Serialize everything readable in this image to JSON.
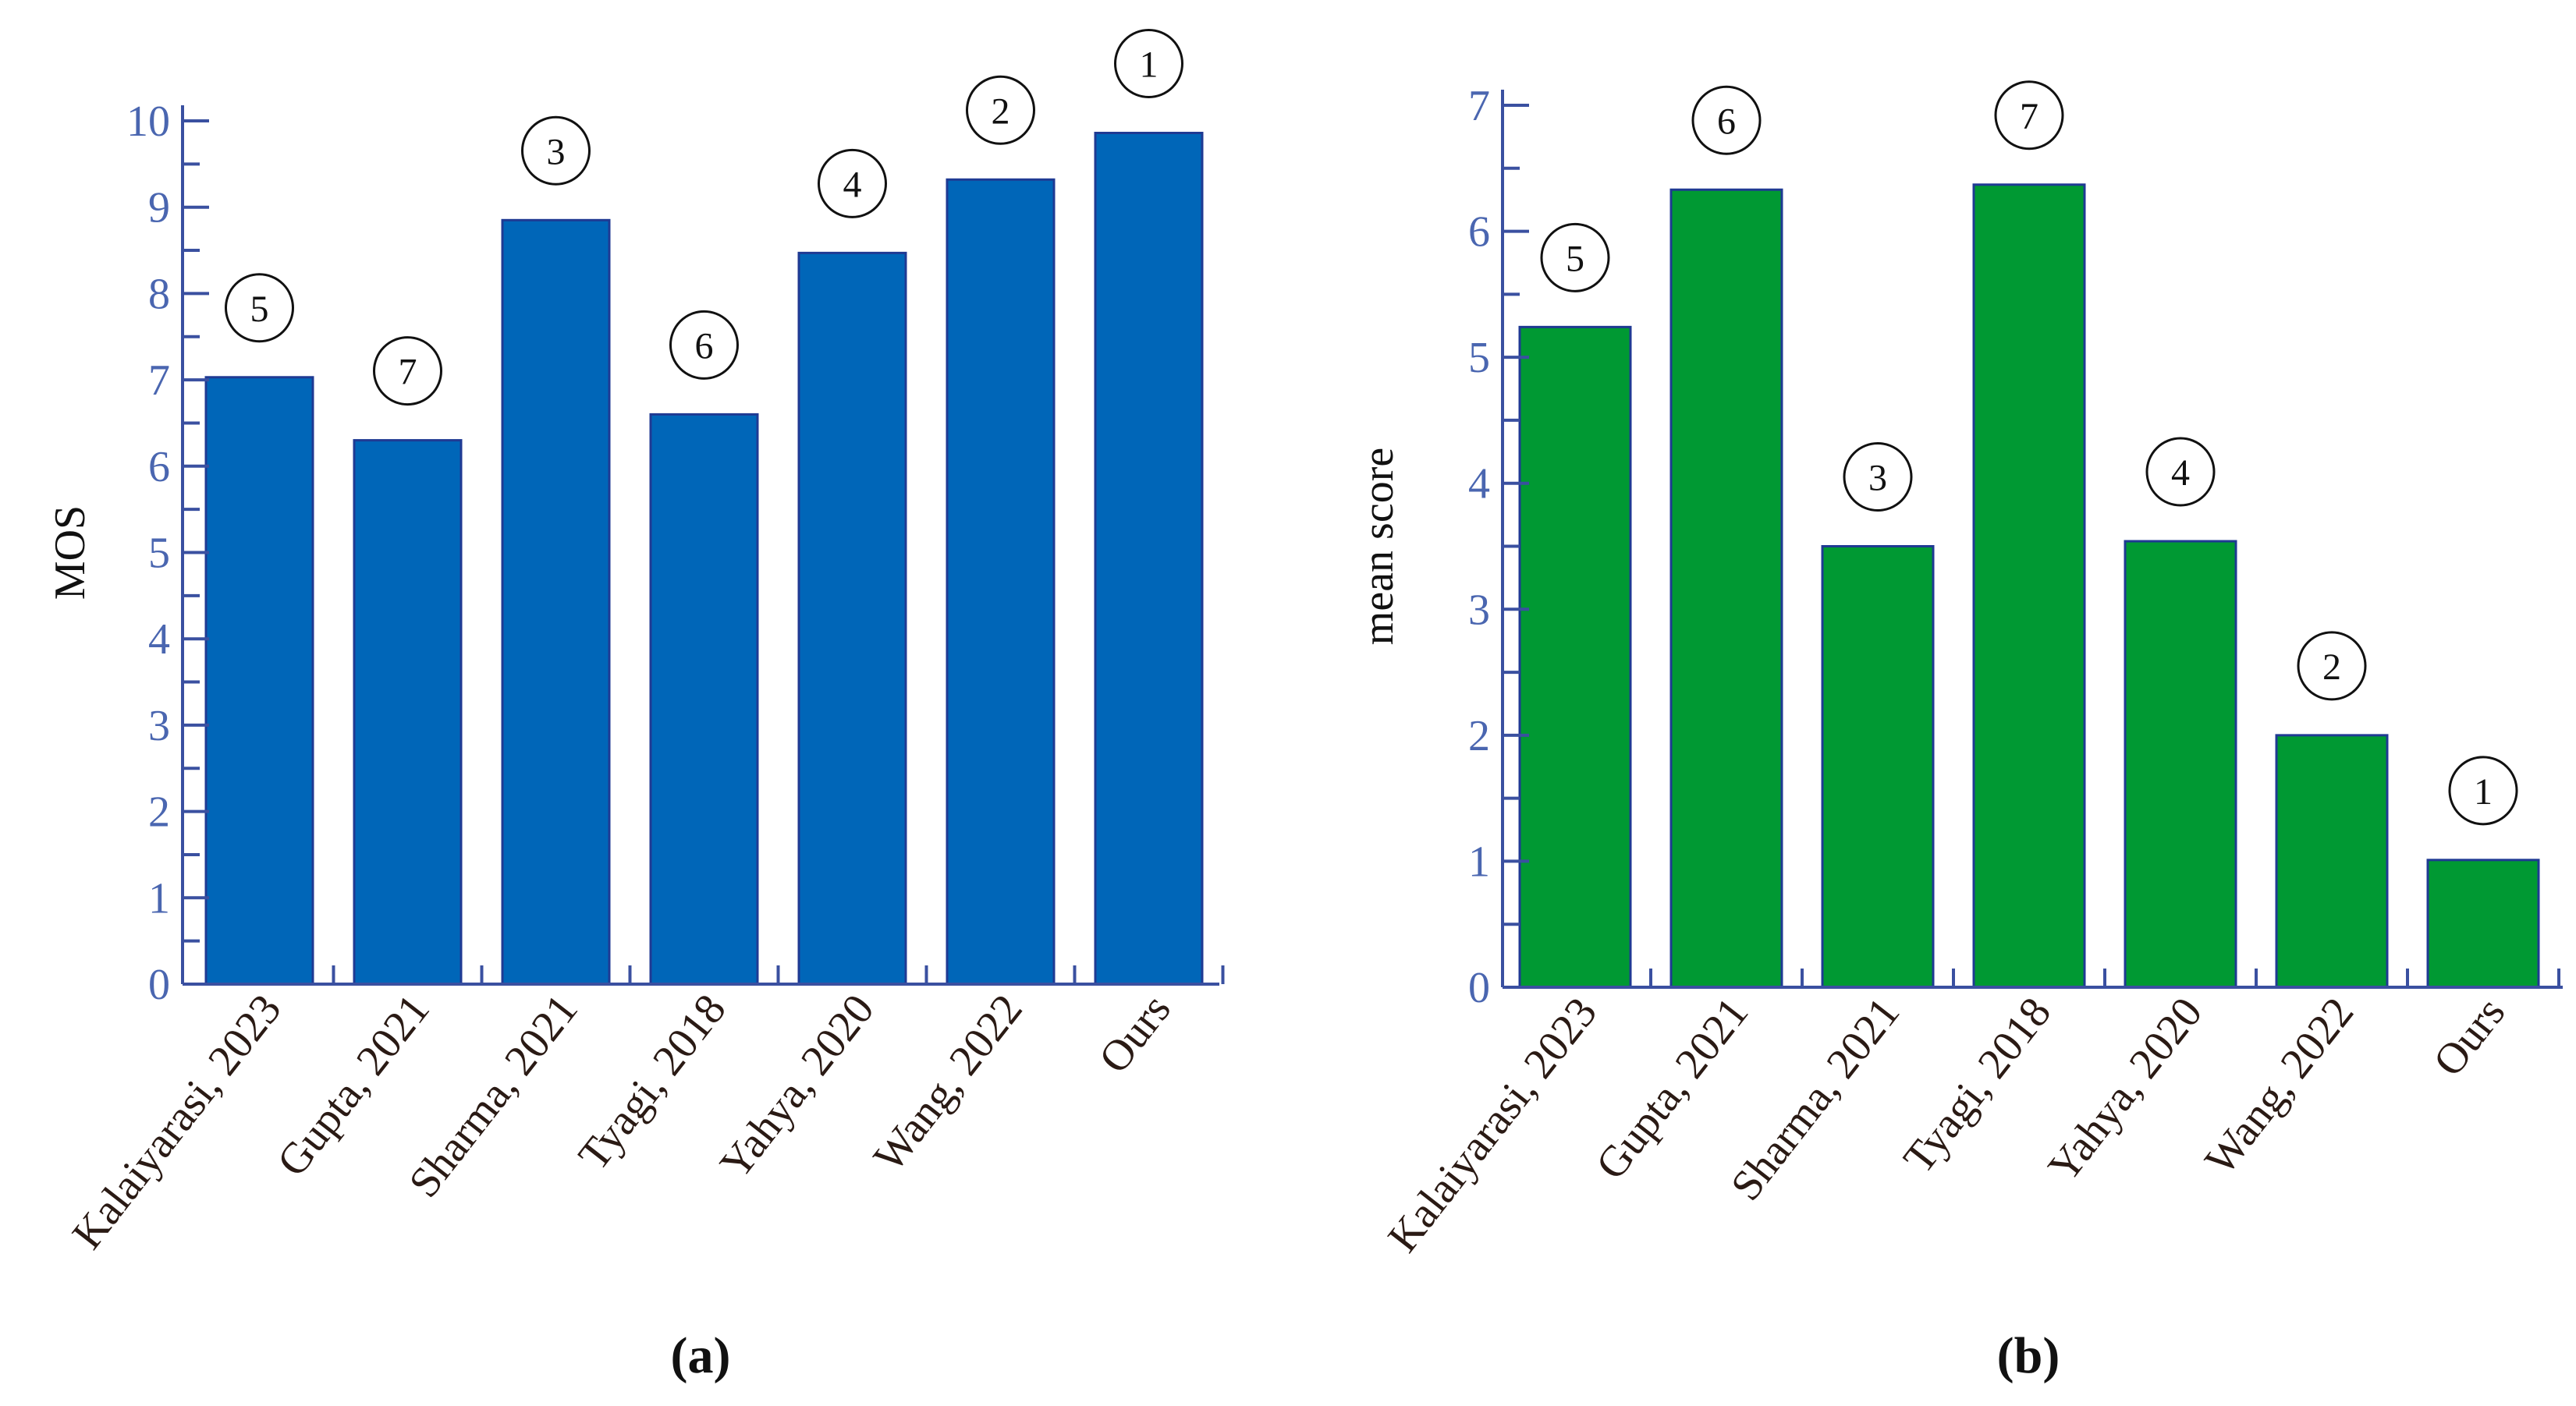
{
  "chart_data": [
    {
      "type": "bar",
      "panel_label": "(a)",
      "title": "",
      "xlabel": "",
      "ylabel": "MOS",
      "ylim": [
        0,
        10
      ],
      "yticks": [
        0,
        1,
        2,
        3,
        4,
        5,
        6,
        7,
        8,
        9,
        10
      ],
      "categories": [
        "Kalaiyarasi, 2023",
        "Gupta, 2021",
        "Sharma, 2021",
        "Tyagi, 2018",
        "Yahya, 2020",
        "Wang, 2022",
        "Ours"
      ],
      "values": [
        7.03,
        6.3,
        8.85,
        6.6,
        8.47,
        9.32,
        9.86
      ],
      "ranks": [
        "5",
        "7",
        "3",
        "6",
        "4",
        "2",
        "1"
      ],
      "bar_color": "#0066b8",
      "bar_edge_color": "#1f3a93",
      "axis_color": "#3a50a0",
      "tick_label_color": "#4a66b0"
    },
    {
      "type": "bar",
      "panel_label": "(b)",
      "title": "",
      "xlabel": "",
      "ylabel": "mean score",
      "ylim": [
        0,
        7
      ],
      "yticks": [
        0,
        1,
        2,
        3,
        4,
        5,
        6,
        7
      ],
      "categories": [
        "Kalaiyarasi, 2023",
        "Gupta, 2021",
        "Sharma, 2021",
        "Tyagi, 2018",
        "Yahya, 2020",
        "Wang, 2022",
        "Ours"
      ],
      "values": [
        5.24,
        6.33,
        3.5,
        6.37,
        3.54,
        2.0,
        1.01
      ],
      "ranks": [
        "5",
        "6",
        "3",
        "7",
        "4",
        "2",
        "1"
      ],
      "bar_color": "#009933",
      "bar_edge_color": "#1f3a93",
      "axis_color": "#3a50a0",
      "tick_label_color": "#4a66b0"
    }
  ]
}
